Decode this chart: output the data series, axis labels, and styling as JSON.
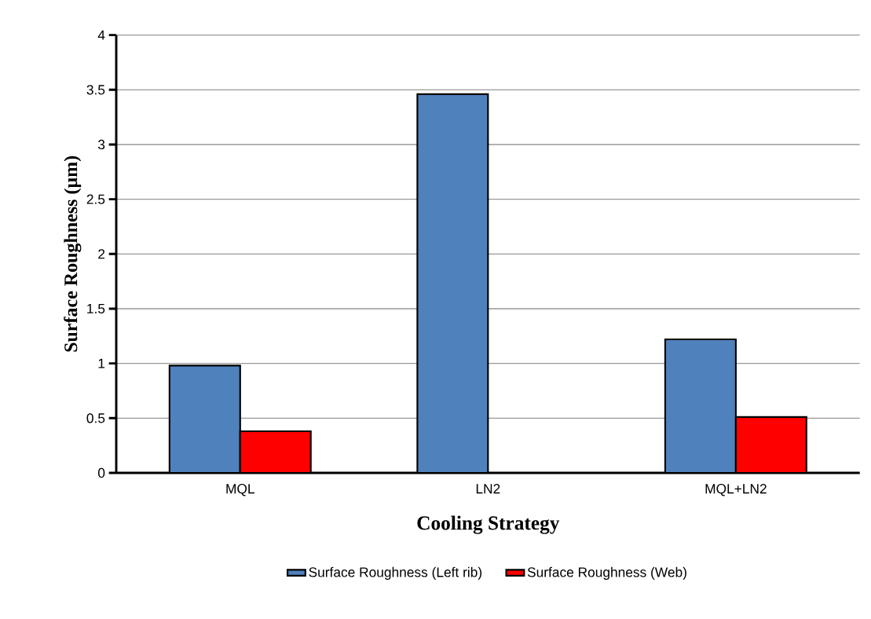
{
  "chart_data": {
    "type": "bar",
    "xlabel": "Cooling Strategy",
    "ylabel": "Surface Roughness (µm)",
    "categories": [
      "MQL",
      "LN2",
      "MQL+LN2"
    ],
    "series": [
      {
        "name": "Surface Roughness (Left rib)",
        "color": "#4f81bd",
        "values": [
          0.98,
          3.46,
          1.22
        ]
      },
      {
        "name": "Surface Roughness (Web)",
        "color": "#ff0000",
        "values": [
          0.38,
          null,
          0.51
        ]
      }
    ],
    "ylim": [
      0,
      4
    ],
    "yticks": [
      0,
      0.5,
      1,
      1.5,
      2,
      2.5,
      3,
      3.5,
      4
    ],
    "grid": "y",
    "legend": "bottom"
  }
}
